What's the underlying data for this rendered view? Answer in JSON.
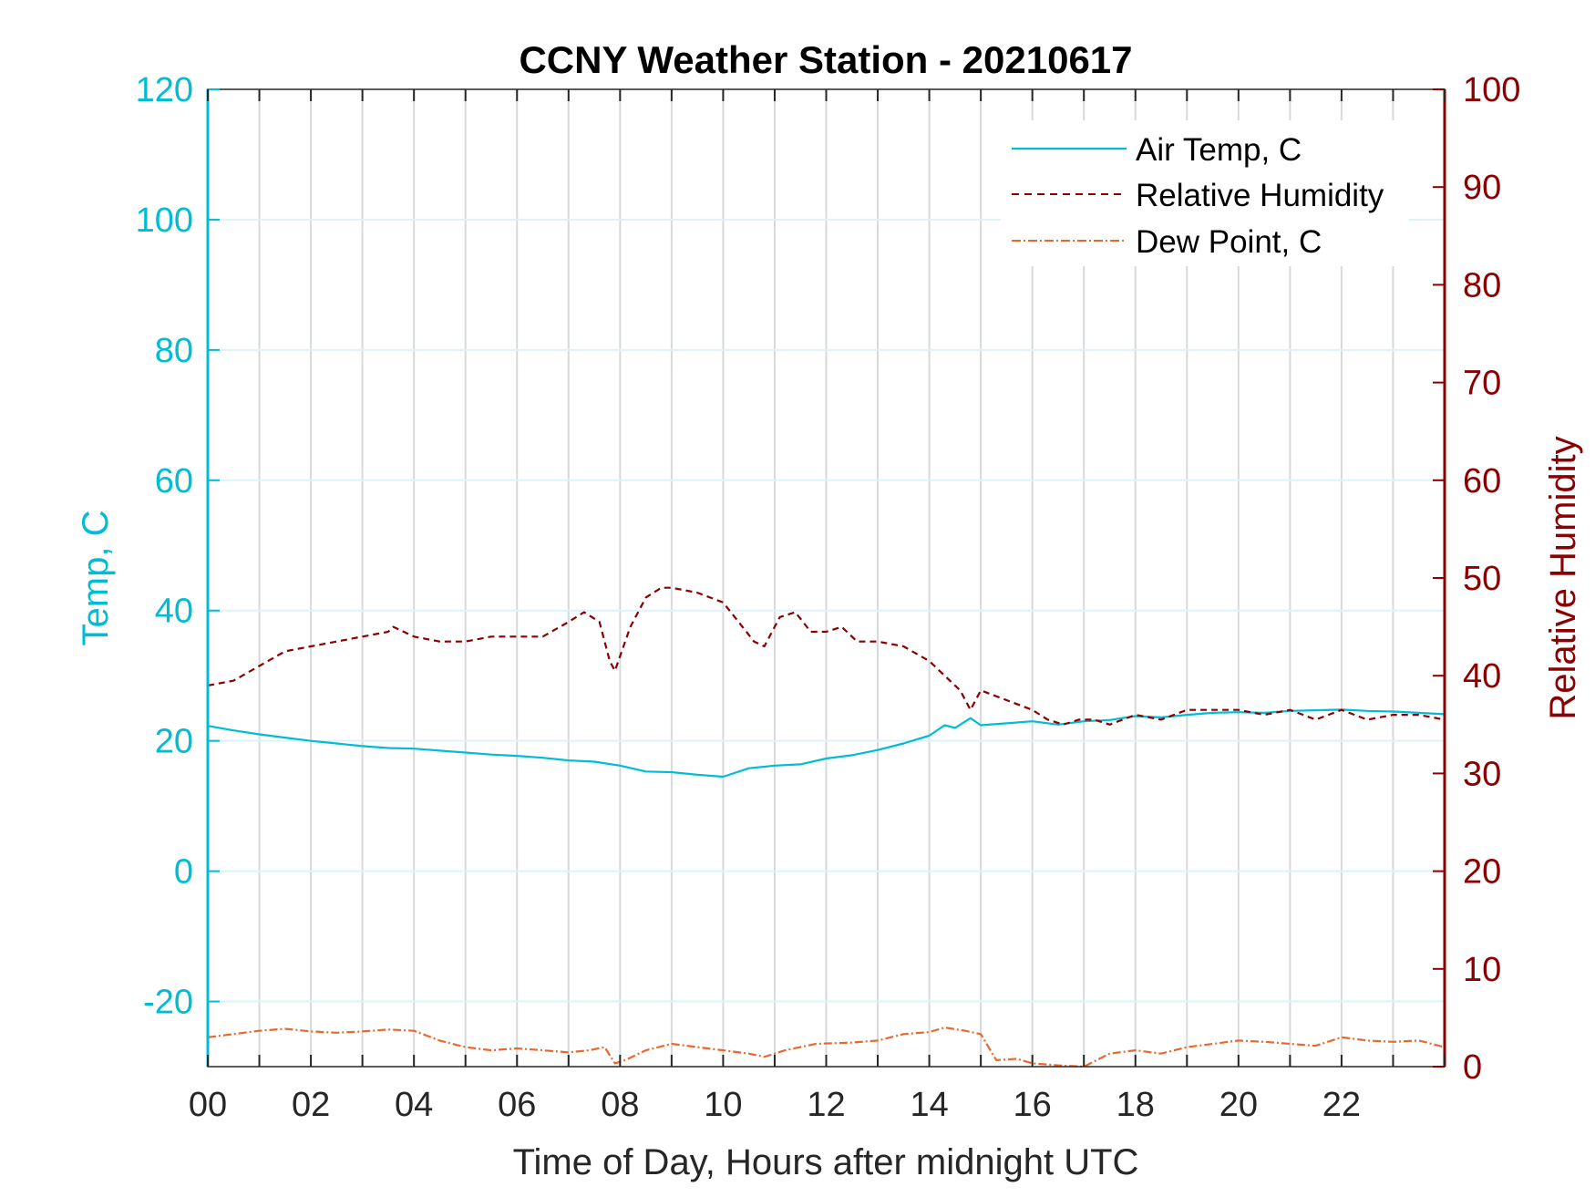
{
  "chart_data": {
    "type": "line",
    "title": "CCNY Weather Station - 20210617",
    "xlabel": "Time of Day, Hours after midnight UTC",
    "ylabel_left": "Temp, C",
    "ylabel_right": "Relative Humidity",
    "xlim": [
      0,
      24
    ],
    "ylim_left": [
      -30,
      120
    ],
    "ylim_right": [
      0,
      100
    ],
    "x_ticks": [
      "00",
      "02",
      "04",
      "06",
      "08",
      "10",
      "12",
      "14",
      "16",
      "18",
      "20",
      "22"
    ],
    "x_tick_values": [
      0,
      2,
      4,
      6,
      8,
      10,
      12,
      14,
      16,
      18,
      20,
      22
    ],
    "y_ticks_left": [
      "-20",
      "0",
      "20",
      "40",
      "60",
      "80",
      "100",
      "120"
    ],
    "y_tick_values_left": [
      -20,
      0,
      20,
      40,
      60,
      80,
      100,
      120
    ],
    "y_ticks_right": [
      "0",
      "10",
      "20",
      "30",
      "40",
      "50",
      "60",
      "70",
      "80",
      "90",
      "100"
    ],
    "y_tick_values_right": [
      0,
      10,
      20,
      30,
      40,
      50,
      60,
      70,
      80,
      90,
      100
    ],
    "grid": true,
    "legend_position": "top-right",
    "series": [
      {
        "name": "Air Temp, C",
        "axis": "left",
        "color": "#00bcd4",
        "style": "solid",
        "x": [
          0,
          0.5,
          1,
          1.5,
          2,
          2.5,
          3,
          3.5,
          4,
          4.5,
          5,
          5.5,
          6,
          6.5,
          7,
          7.5,
          8,
          8.5,
          9,
          9.5,
          10,
          10.5,
          11,
          11.5,
          12,
          12.5,
          13,
          13.5,
          14,
          14.3,
          14.5,
          14.8,
          15,
          15.5,
          16,
          16.5,
          17,
          17.5,
          18,
          18.5,
          19,
          19.5,
          20,
          20.5,
          21,
          21.5,
          22,
          22.5,
          23,
          23.5,
          24
        ],
        "values": [
          22.3,
          21.6,
          21.0,
          20.5,
          20.0,
          19.6,
          19.2,
          18.9,
          18.8,
          18.5,
          18.2,
          17.9,
          17.7,
          17.4,
          17.0,
          16.8,
          16.2,
          15.3,
          15.2,
          14.8,
          14.5,
          15.8,
          16.2,
          16.4,
          17.3,
          17.8,
          18.6,
          19.6,
          20.8,
          22.4,
          22.0,
          23.5,
          22.4,
          22.7,
          23.0,
          22.5,
          23.0,
          23.2,
          23.8,
          23.6,
          24.0,
          24.3,
          24.4,
          24.3,
          24.6,
          24.7,
          24.8,
          24.6,
          24.5,
          24.3,
          24.1
        ]
      },
      {
        "name": "Relative Humidity",
        "axis": "right",
        "color": "#8b0000",
        "style": "dashed",
        "x": [
          0,
          0.5,
          1,
          1.5,
          2,
          2.5,
          3,
          3.5,
          3.6,
          4,
          4.5,
          5,
          5.5,
          6,
          6.5,
          7,
          7.3,
          7.6,
          7.8,
          7.9,
          8.2,
          8.5,
          8.8,
          9,
          9.5,
          10,
          10.3,
          10.6,
          10.8,
          11.1,
          11.4,
          11.7,
          12,
          12.3,
          12.6,
          13,
          13.5,
          14,
          14.3,
          14.6,
          14.8,
          15,
          15.5,
          16,
          16.3,
          16.6,
          16.9,
          17.2,
          17.5,
          18,
          18.5,
          19,
          19.5,
          20,
          20.5,
          21,
          21.5,
          22,
          22.5,
          23,
          23.5,
          24
        ],
        "values": [
          39.0,
          39.5,
          41.0,
          42.5,
          43.0,
          43.5,
          44.0,
          44.5,
          45.0,
          44.0,
          43.5,
          43.5,
          44.0,
          44.0,
          44.0,
          45.5,
          46.5,
          45.5,
          41.5,
          40.5,
          45.0,
          48.0,
          49.0,
          49.0,
          48.5,
          47.5,
          45.5,
          43.5,
          43.0,
          46.0,
          46.5,
          44.5,
          44.5,
          45.0,
          43.5,
          43.5,
          43.0,
          41.5,
          40.0,
          38.5,
          36.5,
          38.5,
          37.5,
          36.5,
          35.5,
          35.0,
          35.5,
          35.5,
          35.0,
          36.0,
          35.5,
          36.5,
          36.5,
          36.5,
          36.0,
          36.5,
          35.5,
          36.5,
          35.5,
          36.0,
          36.0,
          35.5
        ]
      },
      {
        "name": "Dew Point, C",
        "axis": "left",
        "color": "#e8692e",
        "style": "dash-dot",
        "x": [
          0,
          0.5,
          1,
          1.5,
          2,
          2.5,
          3,
          3.5,
          4,
          4.5,
          5,
          5.5,
          6,
          6.5,
          7,
          7.4,
          7.7,
          7.9,
          8.1,
          8.5,
          9,
          9.5,
          10,
          10.5,
          10.8,
          11.2,
          11.8,
          12.5,
          13,
          13.5,
          14,
          14.3,
          14.7,
          15,
          15.3,
          15.7,
          16,
          16.5,
          17,
          17.5,
          18,
          18.5,
          19,
          19.5,
          20,
          20.5,
          21,
          21.5,
          22,
          22.5,
          23,
          23.5,
          24
        ],
        "values": [
          -25.5,
          -25.0,
          -24.5,
          -24.2,
          -24.6,
          -24.8,
          -24.6,
          -24.3,
          -24.5,
          -26.0,
          -27.0,
          -27.5,
          -27.2,
          -27.5,
          -27.8,
          -27.5,
          -27.0,
          -29.5,
          -29.0,
          -27.5,
          -26.5,
          -27.0,
          -27.5,
          -28.0,
          -28.5,
          -27.5,
          -26.5,
          -26.3,
          -26.0,
          -25.0,
          -24.7,
          -24.0,
          -24.5,
          -25.0,
          -29.0,
          -28.8,
          -29.5,
          -29.8,
          -30.0,
          -28.0,
          -27.5,
          -28.0,
          -27.0,
          -26.5,
          -26.0,
          -26.2,
          -26.5,
          -26.8,
          -25.5,
          -26.0,
          -26.2,
          -26.0,
          -27.0
        ]
      }
    ]
  }
}
